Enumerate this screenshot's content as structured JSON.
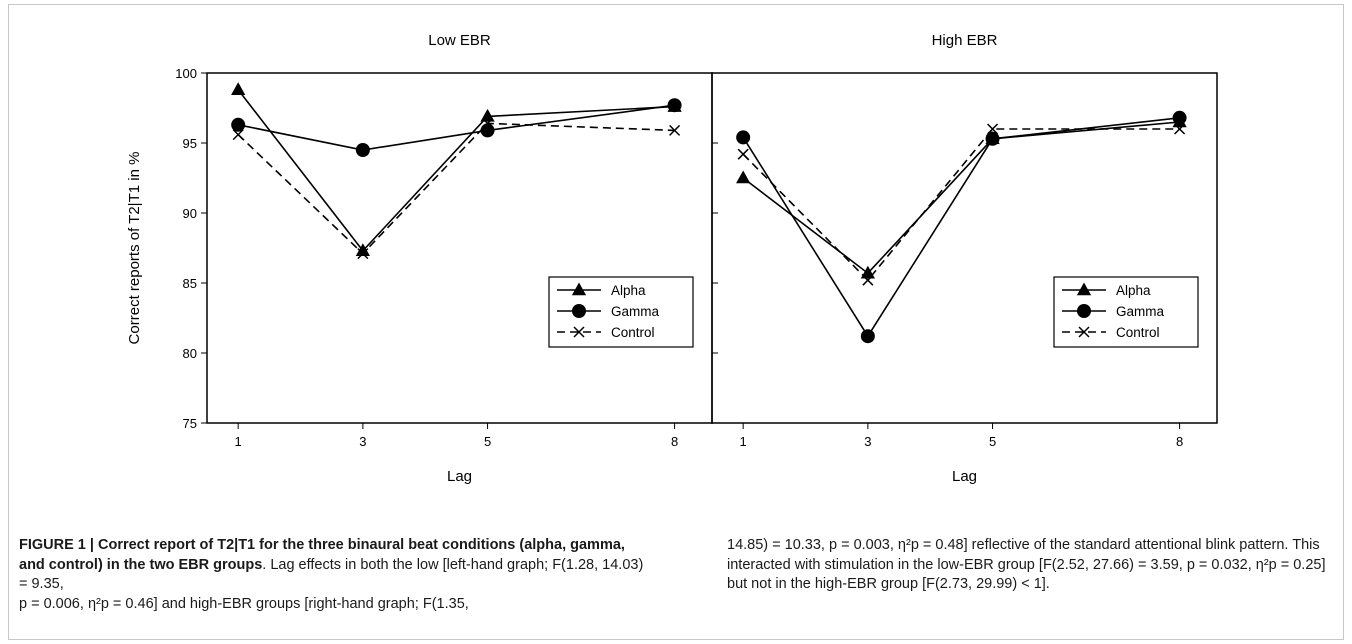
{
  "chart_data": [
    {
      "type": "line",
      "title": "Low EBR",
      "xlabel": "Lag",
      "ylabel": "Correct reports of T2|T1 in %",
      "x": [
        1,
        3,
        5,
        8
      ],
      "xticks": [
        "1",
        "3",
        "5",
        "8"
      ],
      "xlim": [
        0.5,
        8.6
      ],
      "ylim": [
        75,
        100
      ],
      "yticks": [
        "75",
        "80",
        "85",
        "90",
        "95",
        "100"
      ],
      "grid": false,
      "legend": "bottom-right",
      "series": [
        {
          "name": "Alpha",
          "marker": "triangle",
          "line": "solid",
          "values": [
            98.8,
            87.3,
            96.9,
            97.6
          ]
        },
        {
          "name": "Gamma",
          "marker": "circle",
          "line": "solid",
          "values": [
            96.3,
            94.5,
            95.9,
            97.7
          ]
        },
        {
          "name": "Control",
          "marker": "x",
          "line": "dashed",
          "values": [
            95.6,
            87.1,
            96.4,
            95.9
          ]
        }
      ]
    },
    {
      "type": "line",
      "title": "High EBR",
      "xlabel": "Lag",
      "ylabel": "",
      "x": [
        1,
        3,
        5,
        8
      ],
      "xticks": [
        "1",
        "3",
        "5",
        "8"
      ],
      "xlim": [
        0.5,
        8.6
      ],
      "ylim": [
        75,
        100
      ],
      "yticks": [],
      "grid": false,
      "legend": "bottom-right",
      "series": [
        {
          "name": "Alpha",
          "marker": "triangle",
          "line": "solid",
          "values": [
            92.5,
            85.7,
            95.3,
            96.5
          ]
        },
        {
          "name": "Gamma",
          "marker": "circle",
          "line": "solid",
          "values": [
            95.4,
            81.2,
            95.3,
            96.8
          ]
        },
        {
          "name": "Control",
          "marker": "x",
          "line": "dashed",
          "values": [
            94.2,
            85.2,
            96.0,
            96.0
          ]
        }
      ]
    }
  ],
  "caption": {
    "title": "FIGURE 1 | Correct report of T2|T1 for the three binaural beat conditions (alpha, gamma, and control) in the two EBR groups",
    "left_text_1": "Lag effects in both the low [left-hand graph; ",
    "f1": "F(1.28, 14.03) = 9.35,",
    "p1": "p = 0.006, ",
    "eta1": "η²p = 0.46",
    "left_text_2": "] and high-EBR groups [right-hand graph; ",
    "f2_start": "F(1.35,",
    "f2_end": "14.85) = 10.33,",
    "p2": "p = 0.003, ",
    "eta2": "η²p = 0.48",
    "right_text_1": "] reflective of the standard attentional blink pattern. This interacted with stimulation in the low-EBR group [",
    "f3": "F(2.52, 27.66) = 3.59,",
    "p3": "p = 0.032, ",
    "eta3": "η²p = 0.25",
    "right_text_2": "] but not in the high-EBR group [",
    "f4": "F(2.73, 29.99) < 1",
    "right_text_3": "]."
  }
}
